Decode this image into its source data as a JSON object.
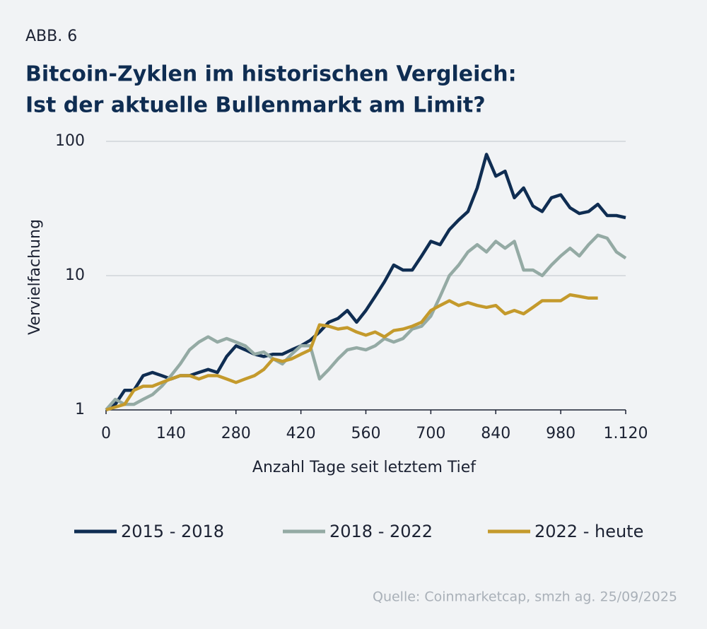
{
  "chart_data": {
    "type": "line",
    "figure_label": "ABB. 6",
    "title": "Bitcoin-Zyklen im historischen Vergleich:",
    "subtitle": "Ist der aktuelle Bullenmarkt am Limit?",
    "x_label": "Anzahl Tage seit letztem Tief",
    "y_label": "Vervielfachung",
    "source": "Quelle: Coinmarketcap, smzh ag. 25/09/2025",
    "log_y": true,
    "grid": true,
    "legend": "bottom",
    "xlim": [
      0,
      1120
    ],
    "xticks": [
      0,
      140,
      280,
      420,
      560,
      700,
      840,
      980,
      {
        "value": 1120,
        "label": "1.120"
      }
    ],
    "ylim": [
      1,
      100
    ],
    "yticks": [
      1,
      10,
      100
    ],
    "x": [
      0,
      20,
      40,
      60,
      80,
      100,
      120,
      140,
      160,
      180,
      200,
      220,
      240,
      260,
      280,
      300,
      320,
      340,
      360,
      380,
      400,
      420,
      440,
      460,
      480,
      500,
      520,
      540,
      560,
      580,
      600,
      620,
      640,
      660,
      680,
      700,
      720,
      740,
      760,
      780,
      800,
      820,
      840,
      860,
      880,
      900,
      920,
      940,
      960,
      980,
      1000,
      1020,
      1040,
      1060,
      1080,
      1100,
      1120
    ],
    "series": [
      {
        "name": "2015 - 2018",
        "color": "#0f2d52",
        "values": [
          1,
          1.1,
          1.4,
          1.4,
          1.8,
          1.9,
          1.8,
          1.7,
          1.8,
          1.8,
          1.9,
          2.0,
          1.9,
          2.5,
          3.0,
          2.8,
          2.6,
          2.5,
          2.6,
          2.6,
          2.8,
          3.0,
          3.3,
          3.8,
          4.5,
          4.8,
          5.5,
          4.5,
          5.5,
          7,
          9,
          12,
          11,
          11,
          14,
          18,
          17,
          22,
          26,
          30,
          45,
          80,
          55,
          60,
          38,
          45,
          33,
          30,
          38,
          40,
          32,
          29,
          30,
          34,
          28,
          28,
          27
        ]
      },
      {
        "name": "2018 - 2022",
        "color": "#94aaa4",
        "values": [
          1,
          1.2,
          1.1,
          1.1,
          1.2,
          1.3,
          1.5,
          1.8,
          2.2,
          2.8,
          3.2,
          3.5,
          3.2,
          3.4,
          3.2,
          3.0,
          2.6,
          2.7,
          2.4,
          2.2,
          2.6,
          3.0,
          3.0,
          1.7,
          2.0,
          2.4,
          2.8,
          2.9,
          2.8,
          3.0,
          3.4,
          3.2,
          3.4,
          4.0,
          4.2,
          5,
          7,
          10,
          12,
          15,
          17,
          15,
          18,
          16,
          18,
          11,
          11,
          10,
          12,
          14,
          16,
          14,
          17,
          20,
          19,
          15,
          13.5
        ]
      },
      {
        "name": "2022 - heute",
        "color": "#c49a2c",
        "values": [
          1,
          1.05,
          1.1,
          1.4,
          1.5,
          1.5,
          1.6,
          1.7,
          1.8,
          1.8,
          1.7,
          1.8,
          1.8,
          1.7,
          1.6,
          1.7,
          1.8,
          2.0,
          2.4,
          2.3,
          2.4,
          2.6,
          2.8,
          4.3,
          4.2,
          4.0,
          4.1,
          3.8,
          3.6,
          3.8,
          3.5,
          3.9,
          4.0,
          4.2,
          4.5,
          5.5,
          6.0,
          6.5,
          6.0,
          6.3,
          6.0,
          5.8,
          6.0,
          5.2,
          5.5,
          5.2,
          5.8,
          6.5,
          6.5,
          6.5,
          7.2,
          7.0,
          6.8,
          6.8,
          null,
          null,
          null
        ]
      }
    ]
  }
}
